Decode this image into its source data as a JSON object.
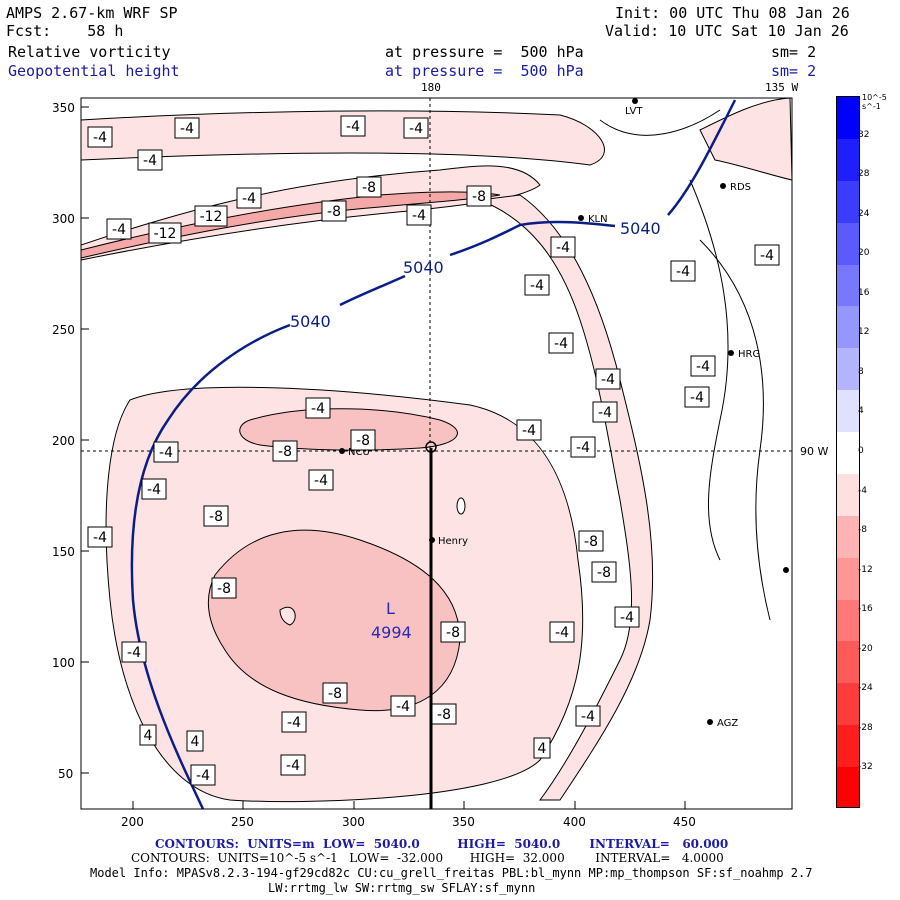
{
  "header": {
    "model": "AMPS 2.67-km WRF SP",
    "fcst": "Fcst:    58 h",
    "init": "Init: 00 UTC Thu 08 Jan 26",
    "valid": "Valid: 10 UTC Sat 10 Jan 26",
    "field1": "Relative vorticity",
    "field2": "Geopotential height",
    "at1": "at pressure =  500 hPa",
    "at2": "at pressure =  500 hPa",
    "sm1": "sm= 2",
    "sm2": "sm= 2"
  },
  "map": {
    "lon_labels": [
      "180",
      "135 W",
      "90 W"
    ],
    "stations": [
      "LVT",
      "RDS",
      "KLN",
      "HRG",
      "NCU",
      "Henry",
      "AGZ"
    ],
    "low_label": "L",
    "low_value": "4994",
    "height_labels": [
      "5040",
      "5040",
      "5040"
    ]
  },
  "axes": {
    "y_ticks": [
      "350",
      "300",
      "250",
      "200",
      "150",
      "100",
      "50"
    ],
    "x_ticks": [
      "200",
      "250",
      "300",
      "350",
      "400",
      "450"
    ]
  },
  "colorbar": {
    "unit": "10^-5 s^-1",
    "labels": [
      "32",
      "28",
      "24",
      "20",
      "16",
      "12",
      "8",
      "4",
      "0",
      "-4",
      "-8",
      "-12",
      "-16",
      "-20",
      "-24",
      "-28",
      "-32"
    ],
    "colors": [
      "#0000ff",
      "#1e1eff",
      "#3c3cff",
      "#5a5aff",
      "#7878ff",
      "#9696ff",
      "#b4b4ff",
      "#e0e0ff",
      "#ffffff",
      "#ffe0e0",
      "#ffb4b4",
      "#ff9696",
      "#ff7878",
      "#ff5a5a",
      "#ff3c3c",
      "#ff1e1e",
      "#ff0000"
    ]
  },
  "vort_labels": [
    "-4",
    "-4",
    "-4",
    "-4",
    "-4",
    "-8",
    "-8",
    "-12",
    "-12",
    "-4",
    "-8",
    "-4",
    "-4",
    "-4",
    "-4",
    "-4",
    "-4",
    "-4",
    "-4",
    "-8",
    "-8",
    "-4",
    "-4",
    "-4",
    "-4",
    "-4",
    "-8",
    "-4",
    "-8",
    "-8",
    "-8",
    "-4",
    "-8",
    "-4",
    "-4",
    "-8",
    "-4",
    "-8",
    "-4",
    "-4",
    "4",
    "4",
    "4",
    "-4",
    "-4",
    "-4"
  ],
  "footer": {
    "line1": "CONTOURS:  UNITS=m  LOW=  5040.0         HIGH=  5040.0       INTERVAL=   60.000",
    "line2": "CONTOURS:  UNITS=10^-5 s^-1   LOW=  -32.000       HIGH=  32.000        INTERVAL=   4.0000",
    "line3": "Model Info: MPASv8.2.3-194-gf29cd82c CU:cu_grell_freitas PBL:bl_mynn MP:mp_thompson SF:sf_noahmp 2.7",
    "line4": "LW:rrtmg_lw SW:rrtmg_sw SFLAY:sf_mynn"
  }
}
